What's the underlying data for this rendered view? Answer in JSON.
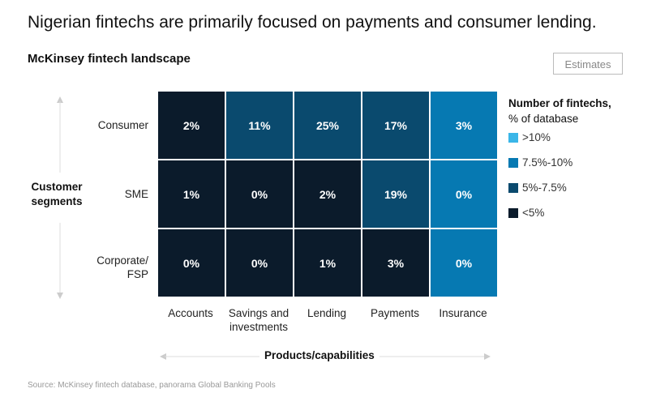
{
  "title": "Nigerian fintechs are primarily focused on payments and consumer lending.",
  "subtitle": "McKinsey fintech landscape",
  "estimates_label": "Estimates",
  "source": "Source: McKinsey fintech database, panorama Global Banking Pools",
  "colors": {
    "gt10": "#3ab6e8",
    "7.5-10": "#0679b2",
    "5-7.5": "#0a4a6e",
    "lt5": "#0b1b2b"
  },
  "chart_data": {
    "type": "heatmap",
    "title": "McKinsey fintech landscape",
    "xlabel": "Products/capabilities",
    "ylabel": "Customer segments",
    "columns": [
      "Accounts",
      "Savings and investments",
      "Lending",
      "Payments",
      "Insurance"
    ],
    "rows": [
      "Consumer",
      "SME",
      "Corporate/ FSP"
    ],
    "values": [
      [
        "2%",
        "11%",
        "25%",
        "17%",
        "3%"
      ],
      [
        "1%",
        "0%",
        "2%",
        "19%",
        "0%"
      ],
      [
        "0%",
        "0%",
        "1%",
        "3%",
        "0%"
      ]
    ],
    "color_levels": [
      [
        "lt5",
        "5-7.5",
        "5-7.5",
        "5-7.5",
        "7.5-10"
      ],
      [
        "lt5",
        "lt5",
        "lt5",
        "5-7.5",
        "7.5-10"
      ],
      [
        "lt5",
        "lt5",
        "lt5",
        "lt5",
        "7.5-10"
      ]
    ],
    "legend": {
      "title": "Number of fintechs,",
      "subtitle": "% of database",
      "placement": "right",
      "items": [
        {
          "label": ">10%",
          "level": "gt10"
        },
        {
          "label": "7.5%-10%",
          "level": "7.5-10"
        },
        {
          "label": "5%-7.5%",
          "level": "5-7.5"
        },
        {
          "label": "<5%",
          "level": "lt5"
        }
      ]
    }
  }
}
